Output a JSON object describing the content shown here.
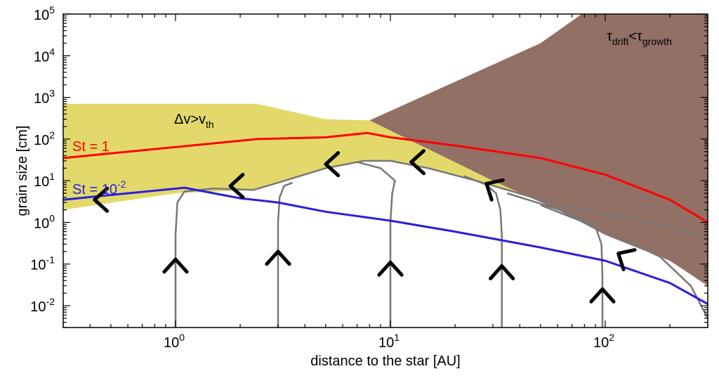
{
  "chart_data": {
    "type": "line",
    "xlabel": "distance to the star [AU]",
    "ylabel": "grain size [cm]",
    "xscale": "log",
    "yscale": "log",
    "xlim": [
      0.3,
      300
    ],
    "ylim": [
      0.003,
      100000
    ],
    "x_ticks": [
      {
        "base": "10",
        "exp": "0"
      },
      {
        "base": "10",
        "exp": "1"
      },
      {
        "base": "10",
        "exp": "2"
      }
    ],
    "y_ticks": [
      {
        "base": "10",
        "exp": "-2"
      },
      {
        "base": "10",
        "exp": "-1"
      },
      {
        "base": "10",
        "exp": "0"
      },
      {
        "base": "10",
        "exp": "1"
      },
      {
        "base": "10",
        "exp": "2"
      },
      {
        "base": "10",
        "exp": "3"
      },
      {
        "base": "10",
        "exp": "4"
      },
      {
        "base": "10",
        "exp": "5"
      }
    ],
    "regions": [
      {
        "label": "Δv>v",
        "label_sub": "th",
        "color": "#e3d96b",
        "upper": [
          [
            0.3,
            700
          ],
          [
            2.4,
            700
          ],
          [
            5,
            300
          ],
          [
            8,
            280
          ],
          [
            20,
            120
          ],
          [
            50,
            45
          ],
          [
            100,
            20
          ],
          [
            200,
            9
          ],
          [
            300,
            6
          ]
        ],
        "lower": [
          [
            0.3,
            2
          ],
          [
            1,
            5
          ],
          [
            2.3,
            6
          ],
          [
            3,
            9
          ],
          [
            5,
            20
          ],
          [
            7.5,
            30
          ],
          [
            10,
            30
          ],
          [
            15,
            20
          ],
          [
            25,
            10
          ],
          [
            50,
            3.5
          ],
          [
            100,
            1.6
          ],
          [
            200,
            0.8
          ],
          [
            300,
            0.4
          ]
        ]
      },
      {
        "label": "τ",
        "label_sub1": "drift",
        "label_mid": "<τ",
        "label_sub2": "growth",
        "color": "#927066",
        "upper": [
          [
            8,
            280
          ],
          [
            50,
            20000
          ],
          [
            100,
            250000
          ],
          [
            300,
            250000
          ]
        ],
        "lower": [
          [
            8,
            280
          ],
          [
            30,
            10
          ],
          [
            60,
            2
          ],
          [
            100,
            0.5
          ],
          [
            200,
            0.12
          ],
          [
            300,
            0.03
          ]
        ]
      }
    ],
    "series": [
      {
        "name": "St = 1",
        "color": "#ff0000",
        "points": [
          [
            0.3,
            35
          ],
          [
            2.4,
            100
          ],
          [
            5,
            110
          ],
          [
            7.8,
            140
          ],
          [
            10,
            110
          ],
          [
            20,
            70
          ],
          [
            50,
            35
          ],
          [
            100,
            14
          ],
          [
            200,
            3.5
          ],
          [
            300,
            1
          ]
        ]
      },
      {
        "name": "St = 10",
        "name_sup": "-2",
        "color": "#2a1fdd",
        "points": [
          [
            0.3,
            3.5
          ],
          [
            1.1,
            6.8
          ],
          [
            2,
            3.8
          ],
          [
            3,
            3
          ],
          [
            5,
            1.8
          ],
          [
            10,
            1.1
          ],
          [
            20,
            0.6
          ],
          [
            50,
            0.25
          ],
          [
            100,
            0.12
          ],
          [
            200,
            0.035
          ],
          [
            300,
            0.011
          ]
        ]
      }
    ],
    "trajectories": [
      {
        "color": "#777777",
        "points": [
          [
            1,
            0.003
          ],
          [
            1,
            0.02
          ],
          [
            1,
            0.5
          ],
          [
            1.02,
            3
          ],
          [
            1.1,
            5.5
          ],
          [
            1.5,
            6.5
          ],
          [
            2.3,
            6
          ],
          [
            3,
            9
          ],
          [
            5,
            20
          ],
          [
            7.5,
            30
          ],
          [
            10,
            30
          ],
          [
            15,
            20
          ],
          [
            25,
            10
          ],
          [
            50,
            3.5
          ],
          [
            100,
            1.6
          ],
          [
            200,
            0.8
          ],
          [
            300,
            0.4
          ]
        ]
      },
      {
        "color": "#777777",
        "points": [
          [
            3,
            0.003
          ],
          [
            3,
            0.02
          ],
          [
            3,
            1
          ],
          [
            3.05,
            4
          ],
          [
            3.2,
            7.5
          ],
          [
            3.5,
            9
          ]
        ]
      },
      {
        "color": "#777777",
        "points": [
          [
            10,
            0.003
          ],
          [
            10,
            0.05
          ],
          [
            10,
            1
          ],
          [
            10.2,
            5
          ],
          [
            10.5,
            10
          ],
          [
            9,
            20
          ],
          [
            7,
            28
          ]
        ]
      },
      {
        "color": "#777777",
        "points": [
          [
            33,
            0.003
          ],
          [
            33,
            0.05
          ],
          [
            33,
            0.5
          ],
          [
            32.5,
            2
          ],
          [
            31,
            5
          ],
          [
            28,
            8
          ],
          [
            22,
            13
          ]
        ]
      },
      {
        "color": "#777777",
        "points": [
          [
            97,
            0.003
          ],
          [
            97,
            0.05
          ],
          [
            96,
            0.3
          ],
          [
            90,
            0.8
          ],
          [
            70,
            1.6
          ],
          [
            50,
            2.8
          ],
          [
            35,
            5
          ]
        ]
      },
      {
        "color": "#777777",
        "points": [
          [
            300,
            0.005
          ],
          [
            250,
            0.03
          ],
          [
            180,
            0.15
          ],
          [
            120,
            0.4
          ],
          [
            80,
            1.0
          ],
          [
            50,
            2.6
          ]
        ]
      }
    ],
    "arrows": [
      {
        "x": 1,
        "y": 0.13,
        "dir": "up"
      },
      {
        "x": 3,
        "y": 0.2,
        "dir": "up"
      },
      {
        "x": 10,
        "y": 0.11,
        "dir": "up"
      },
      {
        "x": 33,
        "y": 0.09,
        "dir": "up"
      },
      {
        "x": 97,
        "y": 0.025,
        "dir": "up"
      },
      {
        "x": 0.42,
        "y": 3.5,
        "dir": "left"
      },
      {
        "x": 1.8,
        "y": 7.5,
        "dir": "left"
      },
      {
        "x": 5,
        "y": 25,
        "dir": "left"
      },
      {
        "x": 12.5,
        "y": 28,
        "dir": "left"
      },
      {
        "x": 28,
        "y": 8.5,
        "dir": "upleft"
      },
      {
        "x": 115,
        "y": 0.18,
        "dir": "upleft"
      }
    ]
  }
}
